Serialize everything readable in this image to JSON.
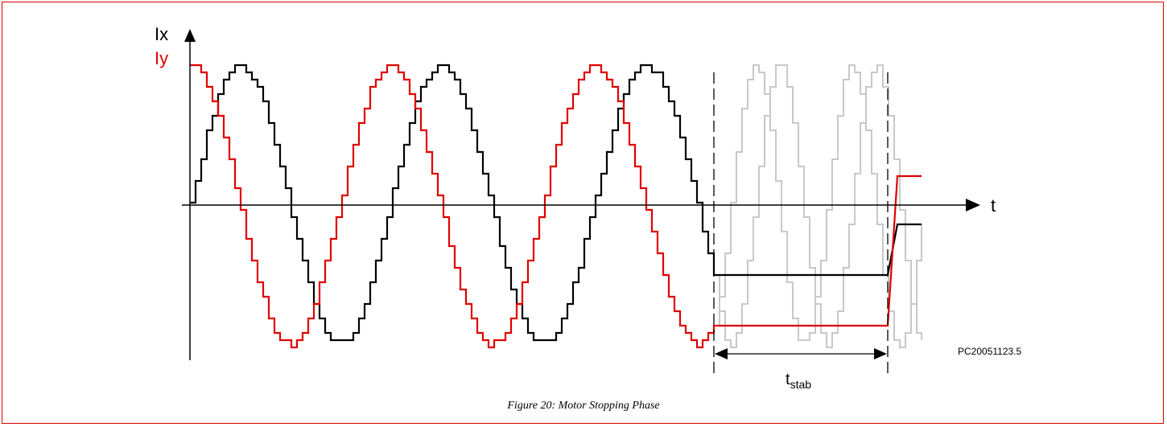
{
  "figure": {
    "caption": "Figure 20: Motor Stopping Phase",
    "reference_code": "PC20051123.5",
    "labels": {
      "ix": "Ix",
      "iy": "Iy",
      "t": "t",
      "tstab_base": "t",
      "tstab_sub": "stab"
    },
    "colors": {
      "ix": "#000000",
      "iy": "#e00000",
      "ghost": "#c8c8c8",
      "frame": "#d90000"
    }
  }
}
